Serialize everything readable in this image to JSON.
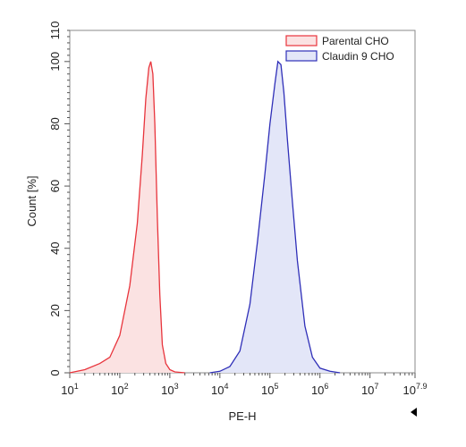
{
  "chart_data": {
    "type": "area",
    "xlabel": "PE-H",
    "ylabel": "Count [%]",
    "xscale": "log10",
    "xlim": [
      1,
      7.9
    ],
    "ylim": [
      0,
      110
    ],
    "x_ticks": [
      {
        "base": "10",
        "exp": "1"
      },
      {
        "base": "10",
        "exp": "2"
      },
      {
        "base": "10",
        "exp": "3"
      },
      {
        "base": "10",
        "exp": "4"
      },
      {
        "base": "10",
        "exp": "5"
      },
      {
        "base": "10",
        "exp": "6"
      },
      {
        "base": "10",
        "exp": "7"
      },
      {
        "base": "10",
        "exp": "7.9"
      }
    ],
    "y_ticks": [
      "0",
      "20",
      "40",
      "60",
      "80",
      "100",
      "110"
    ],
    "legend_position": "top-right",
    "series": [
      {
        "name": "Parental CHO",
        "stroke": "#e8343c",
        "fill": "#fbe2e2",
        "x_log10": [
          1.0,
          1.3,
          1.6,
          1.8,
          2.0,
          2.2,
          2.35,
          2.45,
          2.52,
          2.58,
          2.62,
          2.66,
          2.7,
          2.75,
          2.8,
          2.85,
          2.92,
          3.0,
          3.1,
          3.3
        ],
        "y": [
          0,
          1,
          3,
          5,
          12,
          28,
          48,
          70,
          88,
          98,
          100,
          96,
          80,
          50,
          25,
          9,
          3,
          1,
          0.3,
          0
        ]
      },
      {
        "name": "Claudin 9 CHO",
        "stroke": "#2f2fb8",
        "fill": "#e3e6f8",
        "x_log10": [
          3.8,
          4.0,
          4.2,
          4.4,
          4.6,
          4.75,
          4.9,
          5.0,
          5.1,
          5.16,
          5.22,
          5.28,
          5.35,
          5.45,
          5.55,
          5.7,
          5.85,
          6.0,
          6.2,
          6.4
        ],
        "y": [
          0,
          0.5,
          2,
          7,
          22,
          42,
          64,
          80,
          93,
          100,
          99,
          90,
          75,
          55,
          36,
          15,
          5,
          1.5,
          0.5,
          0
        ]
      }
    ]
  }
}
